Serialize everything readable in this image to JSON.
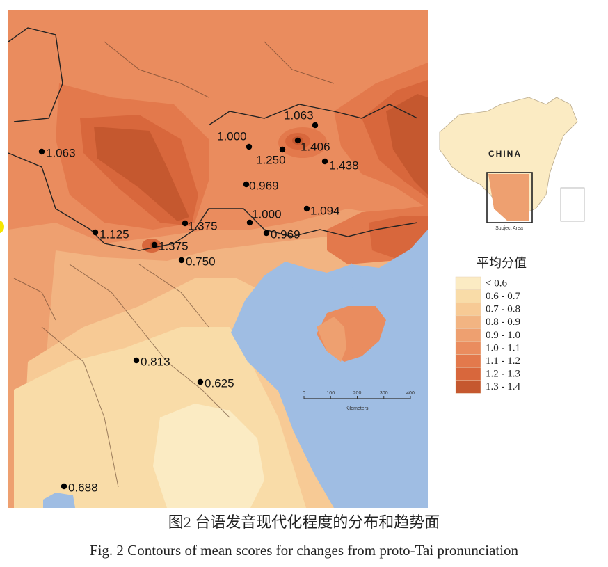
{
  "caption_zh": "图2  台语发音现代化程度的分布和趋势面",
  "caption_en": "Fig. 2  Contours of mean scores for changes from proto-Tai pronunciation",
  "map": {
    "points": [
      "1.063",
      "1.000",
      "1.063",
      "1.250",
      "1.406",
      "1.438",
      "0.969",
      "1.094",
      "1.000",
      "0.969",
      "1.375",
      "1.125",
      "1.375",
      "0.750",
      "0.813",
      "0.625",
      "0.688"
    ],
    "scale_bar": {
      "ticks": [
        "0",
        "100",
        "200",
        "300",
        "400"
      ],
      "unit": "Kilometers"
    },
    "inset": {
      "country": "CHINA",
      "box_label": "Subject Area"
    }
  },
  "legend": {
    "title": "平均分值",
    "items": [
      {
        "label": "< 0.6",
        "color": "#fbebc3"
      },
      {
        "label": "0.6 - 0.7",
        "color": "#f9dca8"
      },
      {
        "label": "0.7 - 0.8",
        "color": "#f7ca95"
      },
      {
        "label": "0.8 - 0.9",
        "color": "#f2b482"
      },
      {
        "label": "0.9 - 1.0",
        "color": "#eea070"
      },
      {
        "label": "1.0 - 1.1",
        "color": "#ea8c5e"
      },
      {
        "label": "1.1 - 1.2",
        "color": "#e3794c"
      },
      {
        "label": "1.2 - 1.3",
        "color": "#d8673c"
      },
      {
        "label": "1.3 - 1.4",
        "color": "#c5582f"
      }
    ]
  }
}
